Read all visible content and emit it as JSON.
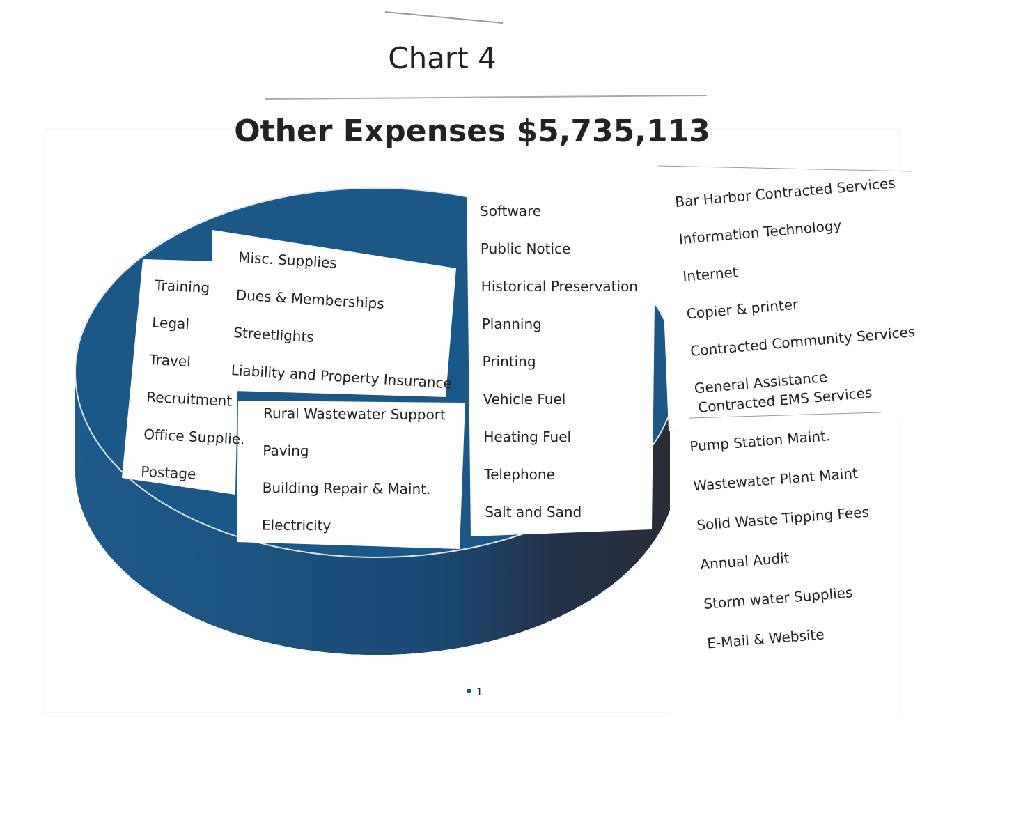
{
  "header": {
    "chart_label": "Chart 4",
    "title": "Other Expenses $5,735,113"
  },
  "label_groups": [
    {
      "items": [
        "Training",
        "Legal",
        "Travel",
        "Recruitment",
        "Office Supplie.",
        "Postage"
      ]
    },
    {
      "items": [
        "Misc. Supplies",
        "Dues & Memberships",
        "Streetlights",
        "Liability and Property Insurance"
      ]
    },
    {
      "items": [
        "Rural Wastewater Support",
        "Paving",
        "Building Repair & Maint.",
        "Electricity"
      ]
    },
    {
      "items": [
        "Software",
        "Public Notice",
        "Historical Preservation",
        "Planning",
        "Printing",
        "Vehicle Fuel",
        "Heating Fuel",
        "Telephone",
        "Salt and Sand"
      ]
    },
    {
      "items": [
        "Bar Harbor Contracted Services",
        "Information Technology",
        "Internet",
        "Copier & printer",
        "Contracted Community Services",
        "General Assistance",
        "Contracted EMS Services"
      ]
    },
    {
      "items": [
        "Pump Station Maint.",
        "Wastewater Plant Maint",
        "Solid Waste Tipping Fees",
        "Annual Audit",
        "Storm water Supplies",
        "E-Mail & Website"
      ]
    }
  ],
  "legend": [
    "1"
  ]
}
